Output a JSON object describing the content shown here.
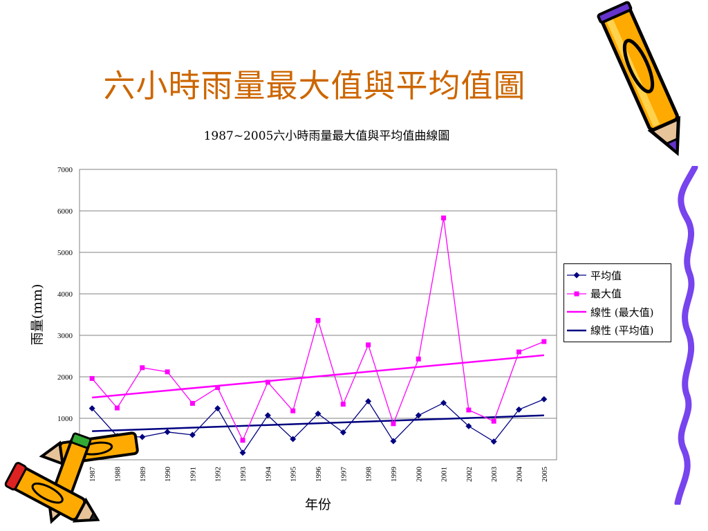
{
  "slide_title": "六小時雨量最大值與平均值圖",
  "chart_data": {
    "type": "line",
    "title": "1987~2005六小時雨量最大值與平均值曲線圖",
    "xlabel": "年份",
    "ylabel": "雨量(mm)",
    "ylim": [
      0,
      7000
    ],
    "yticks": [
      1000,
      2000,
      3000,
      4000,
      5000,
      6000,
      7000
    ],
    "categories": [
      "1987",
      "1988",
      "1989",
      "1990",
      "1991",
      "1992",
      "1993",
      "1994",
      "1995",
      "1996",
      "1997",
      "1998",
      "1999",
      "2000",
      "2001",
      "2002",
      "2003",
      "2004",
      "2005"
    ],
    "grid": true,
    "legend_position": "right",
    "series": [
      {
        "name": "平均值",
        "color": "#000080",
        "marker": "diamond",
        "values": [
          1240,
          570,
          550,
          670,
          600,
          1240,
          170,
          1070,
          500,
          1110,
          660,
          1410,
          450,
          1070,
          1370,
          810,
          440,
          1210,
          1460
        ]
      },
      {
        "name": "最大值",
        "color": "#ff00ff",
        "marker": "square",
        "values": [
          1960,
          1250,
          2220,
          2120,
          1360,
          1740,
          470,
          1870,
          1180,
          3360,
          1340,
          2770,
          870,
          2430,
          5830,
          1200,
          930,
          2600,
          2850
        ]
      }
    ],
    "trendlines": [
      {
        "name": "線性 (最大值)",
        "of": "最大值",
        "color": "#ff00ff",
        "start": 1500,
        "end": 2520
      },
      {
        "name": "線性 (平均值)",
        "of": "平均值",
        "color": "#000080",
        "start": 690,
        "end": 1070
      }
    ]
  },
  "decorations": {
    "pencil_body_color": "#ffaa00",
    "pencil_outline_color": "#000000",
    "pencil_accent_color": "#6633cc",
    "wavy_border_color": "#7744ee"
  }
}
